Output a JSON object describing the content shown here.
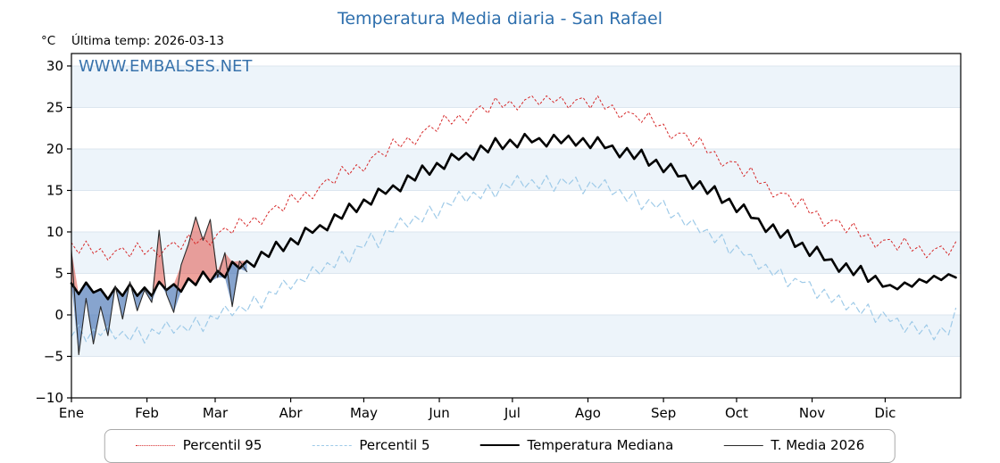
{
  "title": "Temperatura Media diaria - San Rafael",
  "header": {
    "unit": "°C",
    "last_temp": "Última temp: 2026-03-13"
  },
  "watermark": "WWW.EMBALSES.NET",
  "legend": [
    {
      "label": "Percentil 95"
    },
    {
      "label": "Percentil 5"
    },
    {
      "label": "Temperatura Mediana"
    },
    {
      "label": "T. Media 2026"
    }
  ],
  "colors": {
    "title": "#2e6fad",
    "watermark": "#3973ac",
    "axis": "#000000"
  },
  "chart_data": {
    "type": "line",
    "title": "Temperatura Media diaria - San Rafael",
    "xlabel": "",
    "ylabel": "°C",
    "xlim": [
      0,
      365
    ],
    "ylim": [
      -10,
      31.5
    ],
    "yticks": [
      -10,
      -5,
      0,
      5,
      10,
      15,
      20,
      25,
      30
    ],
    "months": [
      "Ene",
      "Feb",
      "Mar",
      "Abr",
      "May",
      "Jun",
      "Jul",
      "Ago",
      "Sep",
      "Oct",
      "Nov",
      "Dic"
    ],
    "month_starts": [
      0,
      31,
      59,
      90,
      120,
      151,
      181,
      212,
      243,
      273,
      304,
      334
    ],
    "x_unit": "day_of_year",
    "x_step": 3,
    "grid_color": "#dce6ef",
    "band_color": "#edf4fa",
    "fill_above": "rgba(225,85,75,0.55)",
    "fill_below": "rgba(70,115,180,0.65)",
    "legend_position": "bottom",
    "series": [
      {
        "name": "Percentil 95",
        "color": "#d62728",
        "style": "dotted",
        "width": 1,
        "dash": "2,3",
        "values": [
          8.7,
          7.4,
          8.9,
          7.4,
          8.0,
          6.6,
          7.7,
          8.1,
          7.0,
          8.7,
          7.3,
          8.1,
          7.0,
          8.2,
          8.8,
          7.9,
          9.7,
          8.5,
          9.4,
          8.4,
          9.8,
          10.5,
          9.8,
          11.7,
          10.7,
          11.8,
          10.9,
          12.4,
          13.2,
          12.5,
          14.6,
          13.6,
          14.8,
          14.0,
          15.5,
          16.4,
          15.8,
          17.9,
          16.9,
          18.1,
          17.3,
          18.9,
          19.7,
          19.1,
          21.2,
          20.2,
          21.4,
          20.5,
          22.0,
          22.8,
          22.1,
          24.1,
          23.0,
          24.1,
          23.1,
          24.5,
          25.2,
          24.3,
          26.2,
          25.0,
          25.8,
          24.7,
          25.9,
          26.4,
          25.3,
          26.4,
          25.6,
          26.3,
          24.9,
          25.9,
          26.2,
          24.9,
          26.4,
          24.8,
          25.3,
          23.7,
          24.5,
          24.2,
          23.2,
          24.4,
          22.7,
          23.0,
          21.2,
          21.9,
          21.9,
          20.3,
          21.4,
          19.5,
          19.7,
          17.9,
          18.5,
          18.4,
          16.7,
          17.8,
          15.8,
          16.0,
          14.2,
          14.7,
          14.6,
          13.0,
          14.1,
          12.2,
          12.5,
          10.7,
          11.4,
          11.4,
          9.9,
          11.1,
          9.4,
          9.7,
          8.1,
          9.0,
          9.1,
          7.8,
          9.3,
          7.7,
          8.3,
          6.9,
          7.9,
          8.3,
          7.2,
          8.8
        ]
      },
      {
        "name": "Percentil 5",
        "color": "#9ecae8",
        "style": "dashed",
        "width": 1.2,
        "dash": "6,4",
        "values": [
          -2.6,
          -1.2,
          -3.2,
          -1.7,
          -2.5,
          -1.3,
          -2.9,
          -2.0,
          -3.1,
          -1.5,
          -3.4,
          -1.7,
          -2.3,
          -0.8,
          -2.2,
          -1.2,
          -2.0,
          -0.3,
          -2.0,
          -0.1,
          -0.5,
          1.1,
          -0.1,
          1.1,
          0.4,
          2.3,
          0.8,
          2.8,
          2.5,
          4.2,
          3.1,
          4.4,
          4.0,
          5.8,
          4.9,
          6.3,
          5.7,
          7.7,
          6.2,
          8.3,
          8.1,
          9.9,
          8.1,
          10.2,
          10.0,
          11.7,
          10.6,
          11.9,
          11.2,
          13.1,
          11.6,
          13.6,
          13.2,
          14.9,
          13.6,
          14.8,
          14.0,
          15.7,
          14.1,
          15.9,
          15.3,
          16.8,
          15.3,
          16.3,
          15.2,
          16.8,
          14.9,
          16.5,
          15.7,
          16.6,
          14.6,
          16.1,
          15.2,
          16.3,
          14.5,
          15.1,
          13.7,
          14.9,
          12.7,
          13.9,
          12.9,
          13.8,
          11.7,
          12.3,
          10.7,
          11.5,
          9.9,
          10.3,
          8.7,
          9.7,
          7.3,
          8.4,
          7.2,
          7.3,
          5.5,
          6.1,
          4.7,
          5.6,
          3.4,
          4.4,
          3.9,
          4.0,
          2.0,
          3.1,
          1.5,
          2.4,
          0.6,
          1.5,
          0.1,
          1.3,
          -0.9,
          0.4,
          -0.8,
          -0.4,
          -2.1,
          -0.8,
          -2.3,
          -1.2,
          -3.0,
          -1.5,
          -2.4,
          0.8
        ]
      },
      {
        "name": "Temperatura Mediana",
        "color": "#000000",
        "style": "solid",
        "width": 2.6,
        "dash": "",
        "values": [
          3.8,
          2.5,
          3.9,
          2.7,
          3.1,
          1.9,
          3.3,
          2.3,
          3.7,
          2.3,
          3.3,
          2.3,
          4.0,
          3.0,
          3.7,
          2.8,
          4.4,
          3.6,
          5.2,
          4.0,
          5.3,
          4.5,
          6.4,
          5.6,
          6.5,
          5.8,
          7.6,
          7.0,
          8.8,
          7.7,
          9.2,
          8.5,
          10.5,
          9.9,
          10.8,
          10.2,
          12.1,
          11.6,
          13.4,
          12.4,
          13.9,
          13.3,
          15.2,
          14.6,
          15.6,
          14.9,
          16.8,
          16.2,
          18.0,
          16.9,
          18.3,
          17.6,
          19.4,
          18.7,
          19.5,
          18.7,
          20.4,
          19.6,
          21.3,
          20.0,
          21.1,
          20.2,
          21.8,
          20.8,
          21.3,
          20.3,
          21.7,
          20.7,
          21.6,
          20.4,
          21.3,
          20.1,
          21.4,
          20.1,
          20.4,
          19.0,
          20.1,
          18.8,
          19.9,
          18.0,
          18.7,
          17.2,
          18.2,
          16.7,
          16.8,
          15.2,
          16.1,
          14.6,
          15.5,
          13.5,
          14.0,
          12.4,
          13.3,
          11.7,
          11.6,
          10.0,
          10.9,
          9.3,
          10.2,
          8.2,
          8.7,
          7.1,
          8.2,
          6.6,
          6.7,
          5.2,
          6.2,
          4.8,
          5.9,
          4.0,
          4.7,
          3.4,
          3.6,
          3.1,
          3.9,
          3.4,
          4.3,
          3.9,
          4.7,
          4.2,
          4.9,
          4.5
        ]
      },
      {
        "name": "T. Media 2026",
        "color": "#2a2a2a",
        "style": "solid",
        "width": 1.1,
        "dash": "",
        "values": [
          7.8,
          -4.8,
          2.0,
          -3.5,
          1.0,
          -2.5,
          3.5,
          -0.5,
          4.0,
          0.5,
          3.0,
          1.5,
          10.2,
          2.5,
          0.3,
          6.0,
          8.5,
          11.8,
          9.0,
          11.5,
          4.5,
          7.5,
          1.0,
          6.5,
          5.2
        ]
      }
    ]
  }
}
